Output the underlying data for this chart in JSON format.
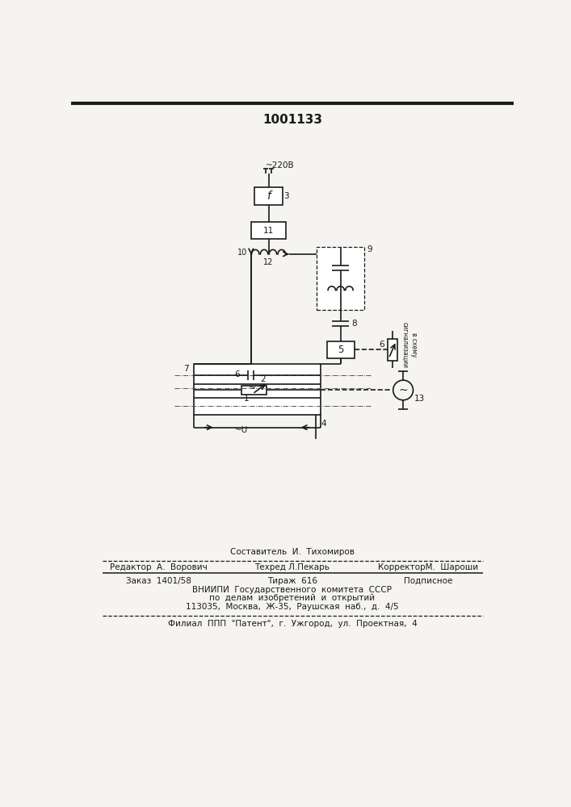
{
  "title": "1001133",
  "bg_color": "#f5f4f1",
  "line_color": "#1a1a1a",
  "line_width": 1.2,
  "footer": {
    "sestavitel": "Составитель  И.  Тихомиров",
    "redaktor": "Редактор  А.  Ворович",
    "tehred": "Техред Л.Пекарь",
    "korrektor": "КорректорМ.  Шароши",
    "zakaz": "Заказ  1401/58",
    "tirazh": "Тираж  616",
    "podpisnoe": "Подписное",
    "vnipi": "ВНИИПИ  Государственного  комитета  СССР",
    "podel": "по  делам  изобретений  и  открытий",
    "addr": "113035,  Москва,  Ж-35,  Раушская  наб.,  д.  4/5",
    "filial": "Филиал  ППП  \"Патент\",  г.  Ужгород,  ул.  Проектная,  4"
  }
}
